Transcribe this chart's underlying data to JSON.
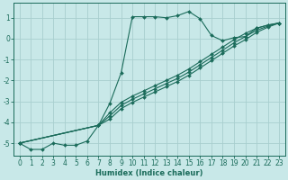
{
  "xlabel": "Humidex (Indice chaleur)",
  "background_color": "#c8e8e8",
  "grid_color": "#a8cece",
  "line_color": "#1a6b5a",
  "xlim": [
    -0.5,
    23.5
  ],
  "ylim": [
    -5.6,
    1.7
  ],
  "yticks": [
    1,
    0,
    -1,
    -2,
    -3,
    -4,
    -5
  ],
  "xticks": [
    0,
    1,
    2,
    3,
    4,
    5,
    6,
    7,
    8,
    9,
    10,
    11,
    12,
    13,
    14,
    15,
    16,
    17,
    18,
    19,
    20,
    21,
    22,
    23
  ],
  "curves": [
    {
      "x": [
        0,
        1,
        2,
        3,
        4,
        5,
        6,
        7,
        8,
        9,
        10,
        11,
        12,
        13,
        14,
        15,
        16,
        17,
        18,
        19,
        20,
        21,
        22,
        23
      ],
      "y": [
        -5.0,
        -5.3,
        -5.3,
        -5.0,
        -5.1,
        -5.1,
        -4.9,
        -4.15,
        -3.1,
        -1.65,
        1.05,
        1.05,
        1.05,
        1.0,
        1.1,
        1.3,
        0.95,
        0.15,
        -0.1,
        0.05,
        0.1,
        0.5,
        0.65,
        0.75
      ]
    },
    {
      "x": [
        0,
        7,
        8,
        9,
        10,
        11,
        12,
        13,
        14,
        15,
        16,
        17,
        18,
        19,
        20,
        21,
        22,
        23
      ],
      "y": [
        -5.0,
        -4.15,
        -3.55,
        -3.05,
        -2.75,
        -2.5,
        -2.25,
        -2.0,
        -1.75,
        -1.45,
        -1.1,
        -0.75,
        -0.4,
        -0.05,
        0.25,
        0.5,
        0.65,
        0.75
      ]
    },
    {
      "x": [
        0,
        7,
        8,
        9,
        10,
        11,
        12,
        13,
        14,
        15,
        16,
        17,
        18,
        19,
        20,
        21,
        22,
        23
      ],
      "y": [
        -5.0,
        -4.15,
        -3.7,
        -3.2,
        -2.9,
        -2.65,
        -2.4,
        -2.15,
        -1.9,
        -1.6,
        -1.25,
        -0.9,
        -0.55,
        -0.2,
        0.1,
        0.4,
        0.6,
        0.75
      ]
    },
    {
      "x": [
        0,
        7,
        8,
        9,
        10,
        11,
        12,
        13,
        14,
        15,
        16,
        17,
        18,
        19,
        20,
        21,
        22,
        23
      ],
      "y": [
        -5.0,
        -4.15,
        -3.85,
        -3.35,
        -3.05,
        -2.8,
        -2.55,
        -2.3,
        -2.05,
        -1.75,
        -1.4,
        -1.05,
        -0.7,
        -0.35,
        -0.05,
        0.3,
        0.55,
        0.75
      ]
    }
  ]
}
